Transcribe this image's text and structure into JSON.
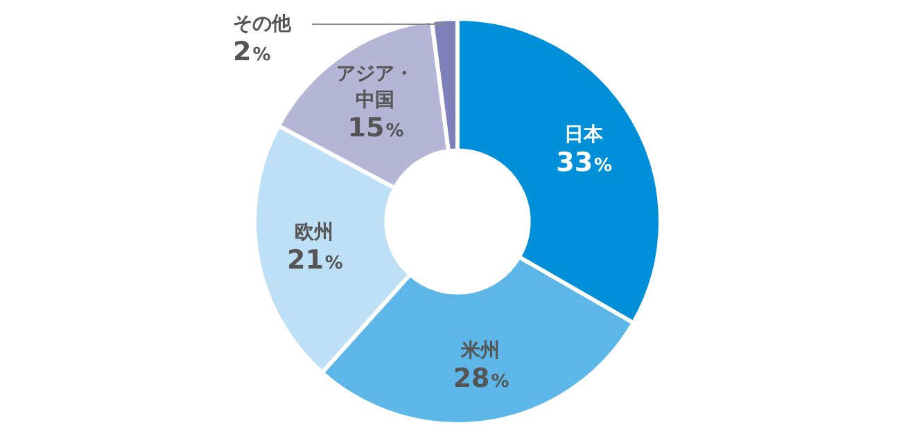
{
  "chart_data": {
    "type": "donut",
    "categories": [
      "日本",
      "米州",
      "欧州",
      "アジア・中国",
      "その他"
    ],
    "values": [
      33,
      28,
      21,
      15,
      2
    ],
    "value_labels": [
      "33%",
      "28%",
      "21%",
      "15%",
      "2%"
    ],
    "colors": [
      "#0090da",
      "#5cb6e8",
      "#bde0f6",
      "#b5b6d6",
      "#7d80b9"
    ],
    "legend": false
  }
}
